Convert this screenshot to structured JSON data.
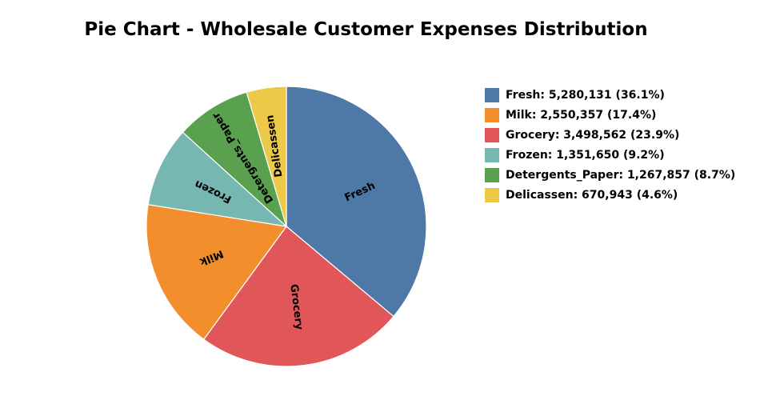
{
  "chart_data": {
    "type": "pie",
    "title": "Pie Chart - Wholesale Customer Expenses Distribution",
    "categories": [
      "Fresh",
      "Milk",
      "Grocery",
      "Frozen",
      "Detergents_Paper",
      "Delicassen"
    ],
    "values": [
      5280131,
      2550357,
      3498562,
      1351650,
      1267857,
      670943
    ],
    "percentages": [
      36.1,
      17.4,
      23.9,
      9.2,
      8.7,
      4.6
    ],
    "slice_order": [
      "Fresh",
      "Grocery",
      "Milk",
      "Frozen",
      "Detergents_Paper",
      "Delicassen"
    ],
    "direction": "clockwise",
    "colors": {
      "Fresh": "#4e79a7",
      "Milk": "#f28e2b",
      "Grocery": "#e15759",
      "Frozen": "#76b7b2",
      "Detergents_Paper": "#59a14f",
      "Delicassen": "#edc948"
    },
    "legend": {
      "position": "right",
      "entries": [
        "Fresh: 5,280,131 (36.1%)",
        "Milk: 2,550,357 (17.4%)",
        "Grocery: 3,498,562 (23.9%)",
        "Frozen: 1,351,650 (9.2%)",
        "Detergents_Paper: 1,267,857 (8.7%)",
        "Delicassen: 670,943 (4.6%)"
      ]
    }
  }
}
